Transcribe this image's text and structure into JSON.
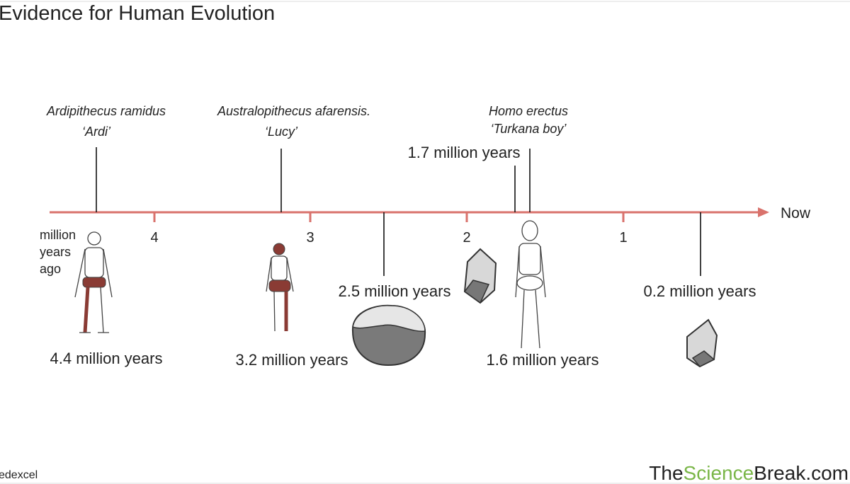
{
  "header": {
    "title": "Evidence for Human Evolution"
  },
  "timeline": {
    "end_label": "Now",
    "unit_label": [
      "million",
      "years",
      "ago"
    ],
    "ticks": [
      "4",
      "3",
      "2",
      "1"
    ]
  },
  "events": [
    {
      "species": "Ardipithecus ramidus",
      "nickname": "‘Ardi’",
      "age": "4.4 million years"
    },
    {
      "species": "Australopithecus afarensis.",
      "nickname": "‘Lucy’",
      "age": "3.2 million years"
    },
    {
      "age": "2.5 million years"
    },
    {
      "age": "1.7 million years"
    },
    {
      "species": "Homo erectus",
      "nickname": "‘Turkana boy’",
      "age": "1.6 million years"
    },
    {
      "age": "0.2 million years"
    }
  ],
  "footer": {
    "left": "edexcel",
    "brand": [
      "The",
      "Science",
      "Break.com"
    ]
  }
}
